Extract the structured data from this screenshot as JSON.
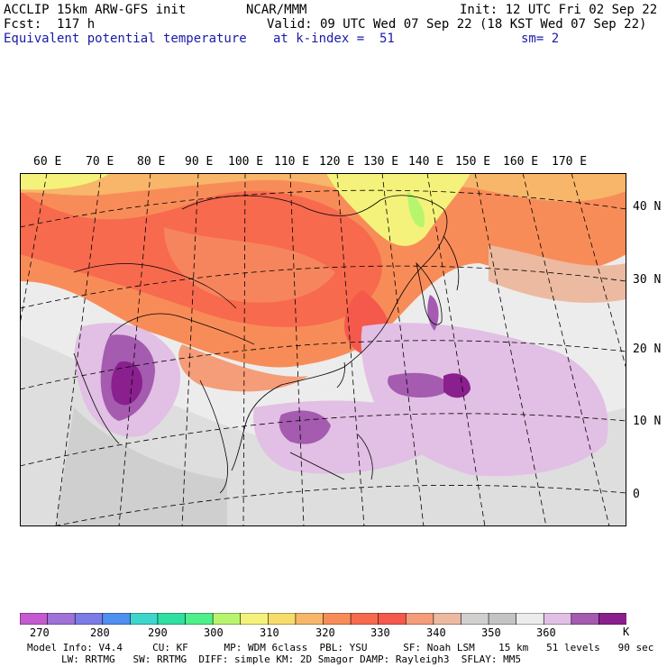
{
  "header": {
    "model": "ACCLIP 15km ARW-GFS init",
    "center": "NCAR/MMM",
    "init": "Init: 12 UTC Fri 02 Sep 22",
    "fcst": "Fcst:  117 h",
    "valid": "Valid: 09 UTC Wed 07 Sep 22 (18 KST Wed 07 Sep 22)",
    "field": "Equivalent potential temperature",
    "level": "at k-index =  51",
    "smooth": "sm= 2"
  },
  "map": {
    "lon_labels": [
      "60 E",
      "70 E",
      "80 E",
      "90 E",
      "100 E",
      "110 E",
      "120 E",
      "130 E",
      "140 E",
      "150 E",
      "160 E",
      "170 E"
    ],
    "lat_labels": [
      "40 N",
      "30 N",
      "20 N",
      "10 N",
      "0"
    ]
  },
  "colorbar": {
    "colors": [
      "#c45ad0",
      "#9f72d8",
      "#7c7ce6",
      "#4e8ff0",
      "#3ed6cc",
      "#2fe0a2",
      "#4df08a",
      "#b8f56e",
      "#f4f27a",
      "#f7dc6c",
      "#f7b66a",
      "#f88c58",
      "#f76a4e",
      "#f4594b",
      "#f59c78",
      "#ebbaa0",
      "#d2d0ce",
      "#c4c4c4",
      "#ececec",
      "#e2bfe4",
      "#a45bb0",
      "#8a1f8e"
    ],
    "ticks": [
      "270",
      "280",
      "290",
      "300",
      "310",
      "320",
      "330",
      "340",
      "350",
      "360"
    ],
    "unit": "K"
  },
  "footer": {
    "line1": "Model Info: V4.4     CU: KF      MP: WDM 6class  PBL: YSU      SF: Noah LSM    15 km   51 levels   90 sec",
    "line2": "LW: RRTMG   SW: RRTMG  DIFF: simple KM: 2D Smagor DAMP: Rayleigh3  SFLAY: MM5"
  }
}
